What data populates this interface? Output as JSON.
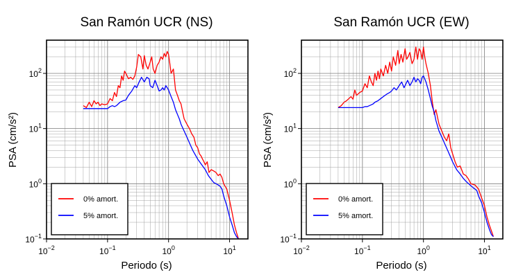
{
  "chart_data": [
    {
      "type": "line",
      "title": "San Ramón UCR (NS)",
      "xlabel": "Periodo (s)",
      "ylabel": "PSA (cm/s²)",
      "x_scale": "log",
      "y_scale": "log",
      "xlim": [
        0.01,
        20
      ],
      "ylim": [
        0.1,
        400
      ],
      "x_ticks": [
        {
          "base": "10",
          "exp": "−2",
          "value": 0.01
        },
        {
          "base": "10",
          "exp": "−1",
          "value": 0.1
        },
        {
          "base": "10",
          "exp": "0",
          "value": 1
        },
        {
          "base": "10",
          "exp": "1",
          "value": 10
        }
      ],
      "y_ticks": [
        {
          "base": "10",
          "exp": "−1",
          "value": 0.1
        },
        {
          "base": "10",
          "exp": "0",
          "value": 1
        },
        {
          "base": "10",
          "exp": "1",
          "value": 10
        },
        {
          "base": "10",
          "exp": "2",
          "value": 100
        }
      ],
      "grid": true,
      "legend_position": "bottom-left",
      "series": [
        {
          "name": "0% amort.",
          "color": "#ff0000",
          "x": [
            0.04,
            0.045,
            0.05,
            0.055,
            0.06,
            0.065,
            0.07,
            0.075,
            0.08,
            0.09,
            0.1,
            0.11,
            0.12,
            0.13,
            0.14,
            0.15,
            0.16,
            0.17,
            0.18,
            0.19,
            0.2,
            0.22,
            0.24,
            0.26,
            0.28,
            0.3,
            0.32,
            0.35,
            0.38,
            0.4,
            0.43,
            0.46,
            0.5,
            0.53,
            0.56,
            0.6,
            0.65,
            0.7,
            0.75,
            0.8,
            0.85,
            0.9,
            0.95,
            1.0,
            1.05,
            1.1,
            1.2,
            1.3,
            1.4,
            1.5,
            1.6,
            1.7,
            1.8,
            2.0,
            2.2,
            2.4,
            2.6,
            2.8,
            3.0,
            3.2,
            3.4,
            3.6,
            3.8,
            4.0,
            4.3,
            4.6,
            5.0,
            5.5,
            6.0,
            6.5,
            7.0,
            7.5,
            8.0,
            9.0,
            10.0,
            11.0,
            12.0,
            13.0,
            14.0
          ],
          "y": [
            26,
            24,
            30,
            25,
            32,
            28,
            30,
            26,
            28,
            27,
            28,
            35,
            32,
            45,
            38,
            60,
            55,
            90,
            75,
            110,
            100,
            80,
            85,
            78,
            90,
            130,
            220,
            200,
            120,
            210,
            140,
            120,
            160,
            200,
            120,
            100,
            140,
            160,
            200,
            180,
            230,
            200,
            250,
            220,
            150,
            100,
            120,
            50,
            40,
            32,
            28,
            20,
            15,
            12,
            10,
            8,
            7,
            5,
            4.5,
            3.5,
            3.2,
            2.8,
            2.5,
            2.2,
            2.5,
            1.6,
            1.8,
            1.7,
            1.6,
            1.4,
            1.5,
            1.3,
            1.0,
            0.8,
            0.5,
            0.3,
            0.18,
            0.13,
            0.1
          ]
        },
        {
          "name": "5% amort.",
          "color": "#0000ff",
          "x": [
            0.04,
            0.05,
            0.06,
            0.07,
            0.08,
            0.09,
            0.1,
            0.11,
            0.12,
            0.13,
            0.14,
            0.15,
            0.16,
            0.18,
            0.2,
            0.22,
            0.25,
            0.28,
            0.3,
            0.33,
            0.36,
            0.4,
            0.44,
            0.48,
            0.5,
            0.55,
            0.6,
            0.65,
            0.7,
            0.75,
            0.8,
            0.85,
            0.9,
            0.95,
            1.0,
            1.1,
            1.2,
            1.3,
            1.4,
            1.5,
            1.6,
            1.8,
            2.0,
            2.2,
            2.5,
            2.8,
            3.0,
            3.5,
            4.0,
            4.5,
            5.0,
            5.5,
            6.0,
            6.5,
            7.0,
            7.5,
            8.0,
            9.0,
            10.0,
            11.0,
            12.0,
            13.0,
            14.0
          ],
          "y": [
            23,
            23,
            23,
            23,
            23,
            23,
            23,
            25,
            26,
            25,
            26,
            28,
            30,
            32,
            33,
            40,
            48,
            60,
            55,
            70,
            85,
            70,
            85,
            80,
            60,
            55,
            75,
            60,
            48,
            50,
            55,
            50,
            60,
            55,
            50,
            38,
            30,
            22,
            18,
            15,
            12,
            9,
            7,
            5.5,
            4,
            3.2,
            2.8,
            2.2,
            1.8,
            1.4,
            1.2,
            1.05,
            1.0,
            0.95,
            0.9,
            0.8,
            0.6,
            0.4,
            0.25,
            0.18,
            0.13,
            0.11,
            0.1
          ]
        }
      ]
    },
    {
      "type": "line",
      "title": "San Ramón UCR (EW)",
      "xlabel": "Periodo (s)",
      "ylabel": "PSA (cm/s²)",
      "x_scale": "log",
      "y_scale": "log",
      "xlim": [
        0.01,
        20
      ],
      "ylim": [
        0.1,
        400
      ],
      "x_ticks": [
        {
          "base": "10",
          "exp": "−2",
          "value": 0.01
        },
        {
          "base": "10",
          "exp": "−1",
          "value": 0.1
        },
        {
          "base": "10",
          "exp": "0",
          "value": 1
        },
        {
          "base": "10",
          "exp": "1",
          "value": 10
        }
      ],
      "y_ticks": [
        {
          "base": "10",
          "exp": "−1",
          "value": 0.1
        },
        {
          "base": "10",
          "exp": "0",
          "value": 1
        },
        {
          "base": "10",
          "exp": "1",
          "value": 10
        },
        {
          "base": "10",
          "exp": "2",
          "value": 100
        }
      ],
      "grid": true,
      "legend_position": "bottom-left",
      "series": [
        {
          "name": "0% amort.",
          "color": "#ff0000",
          "x": [
            0.04,
            0.045,
            0.05,
            0.055,
            0.06,
            0.065,
            0.07,
            0.075,
            0.08,
            0.09,
            0.1,
            0.11,
            0.12,
            0.13,
            0.14,
            0.15,
            0.16,
            0.17,
            0.18,
            0.19,
            0.2,
            0.22,
            0.24,
            0.26,
            0.28,
            0.3,
            0.32,
            0.35,
            0.38,
            0.4,
            0.43,
            0.46,
            0.5,
            0.53,
            0.56,
            0.6,
            0.65,
            0.7,
            0.75,
            0.8,
            0.85,
            0.9,
            0.95,
            1.0,
            1.05,
            1.1,
            1.2,
            1.3,
            1.4,
            1.5,
            1.6,
            1.8,
            2.0,
            2.2,
            2.4,
            2.6,
            2.8,
            3.0,
            3.3,
            3.6,
            4.0,
            4.5,
            5.0,
            5.5,
            6.0,
            7.0,
            8.0,
            9.0,
            10.0,
            11.0,
            12.0,
            13.0,
            14.0
          ],
          "y": [
            24,
            26,
            30,
            32,
            35,
            38,
            34,
            50,
            40,
            45,
            48,
            65,
            55,
            90,
            70,
            60,
            100,
            75,
            110,
            80,
            120,
            90,
            140,
            100,
            160,
            110,
            200,
            140,
            260,
            150,
            220,
            160,
            280,
            180,
            200,
            240,
            150,
            180,
            300,
            180,
            280,
            250,
            180,
            300,
            200,
            150,
            100,
            60,
            30,
            18,
            22,
            12,
            9,
            7,
            6,
            8,
            4.5,
            3.5,
            2.5,
            2.0,
            2.1,
            1.5,
            1.4,
            1.2,
            1.0,
            0.95,
            0.8,
            0.55,
            0.4,
            0.25,
            0.18,
            0.14,
            0.11
          ]
        },
        {
          "name": "5% amort.",
          "color": "#0000ff",
          "x": [
            0.04,
            0.05,
            0.06,
            0.07,
            0.08,
            0.09,
            0.1,
            0.11,
            0.12,
            0.13,
            0.14,
            0.15,
            0.16,
            0.18,
            0.2,
            0.22,
            0.25,
            0.28,
            0.3,
            0.33,
            0.36,
            0.4,
            0.44,
            0.48,
            0.5,
            0.55,
            0.6,
            0.65,
            0.7,
            0.75,
            0.8,
            0.85,
            0.9,
            0.95,
            1.0,
            1.1,
            1.2,
            1.3,
            1.4,
            1.5,
            1.6,
            1.8,
            2.0,
            2.2,
            2.5,
            2.8,
            3.0,
            3.5,
            4.0,
            4.5,
            5.0,
            5.5,
            6.0,
            6.5,
            7.0,
            7.5,
            8.0,
            9.0,
            10.0,
            11.0,
            12.0,
            13.0,
            14.0
          ],
          "y": [
            24,
            24,
            24,
            24,
            24,
            24,
            24,
            25,
            25,
            26,
            27,
            28,
            30,
            32,
            35,
            38,
            42,
            45,
            48,
            55,
            50,
            60,
            70,
            55,
            60,
            75,
            60,
            70,
            85,
            70,
            80,
            75,
            65,
            85,
            90,
            70,
            50,
            35,
            25,
            20,
            14,
            9,
            7,
            5.5,
            4,
            3,
            2.5,
            1.8,
            1.5,
            1.25,
            1.1,
            1.0,
            0.92,
            0.85,
            0.8,
            0.75,
            0.6,
            0.45,
            0.3,
            0.2,
            0.15,
            0.12,
            0.11
          ]
        }
      ]
    }
  ]
}
